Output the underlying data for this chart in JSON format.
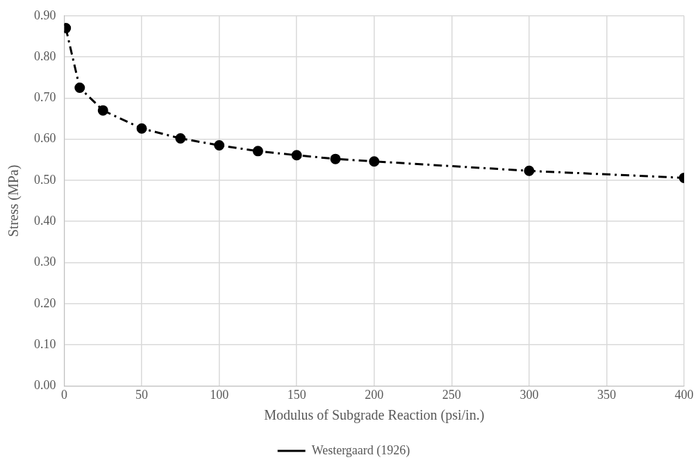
{
  "chart_data": {
    "type": "line",
    "xlabel": "Modulus of Subgrade Reaction (psi/in.)",
    "ylabel": "Stress (MPa)",
    "x": [
      1,
      10,
      25,
      50,
      75,
      100,
      125,
      150,
      175,
      200,
      300,
      400
    ],
    "series": [
      {
        "name": "Westergaard (1926)",
        "color": "#000000",
        "values": [
          0.87,
          0.725,
          0.67,
          0.626,
          0.602,
          0.585,
          0.571,
          0.561,
          0.552,
          0.546,
          0.523,
          0.506
        ]
      }
    ],
    "xlim": [
      0,
      400
    ],
    "xticks": [
      0,
      50,
      100,
      150,
      200,
      250,
      300,
      350,
      400
    ],
    "ylim": [
      0,
      0.9
    ],
    "yticks": [
      {
        "value": 0,
        "label": "0.00"
      },
      {
        "value": 0.1,
        "label": "0.10"
      },
      {
        "value": 0.2,
        "label": "0.20"
      },
      {
        "value": 0.3,
        "label": "0.30"
      },
      {
        "value": 0.4,
        "label": "0.40"
      },
      {
        "value": 0.5,
        "label": "0.50"
      },
      {
        "value": 0.6,
        "label": "0.60"
      },
      {
        "value": 0.7,
        "label": "0.70"
      },
      {
        "value": 0.8,
        "label": "0.80"
      },
      {
        "value": 0.9,
        "label": "0.90"
      }
    ],
    "grid": true,
    "legend": "bottom",
    "marker": "circle",
    "line_style": "dashdot"
  }
}
